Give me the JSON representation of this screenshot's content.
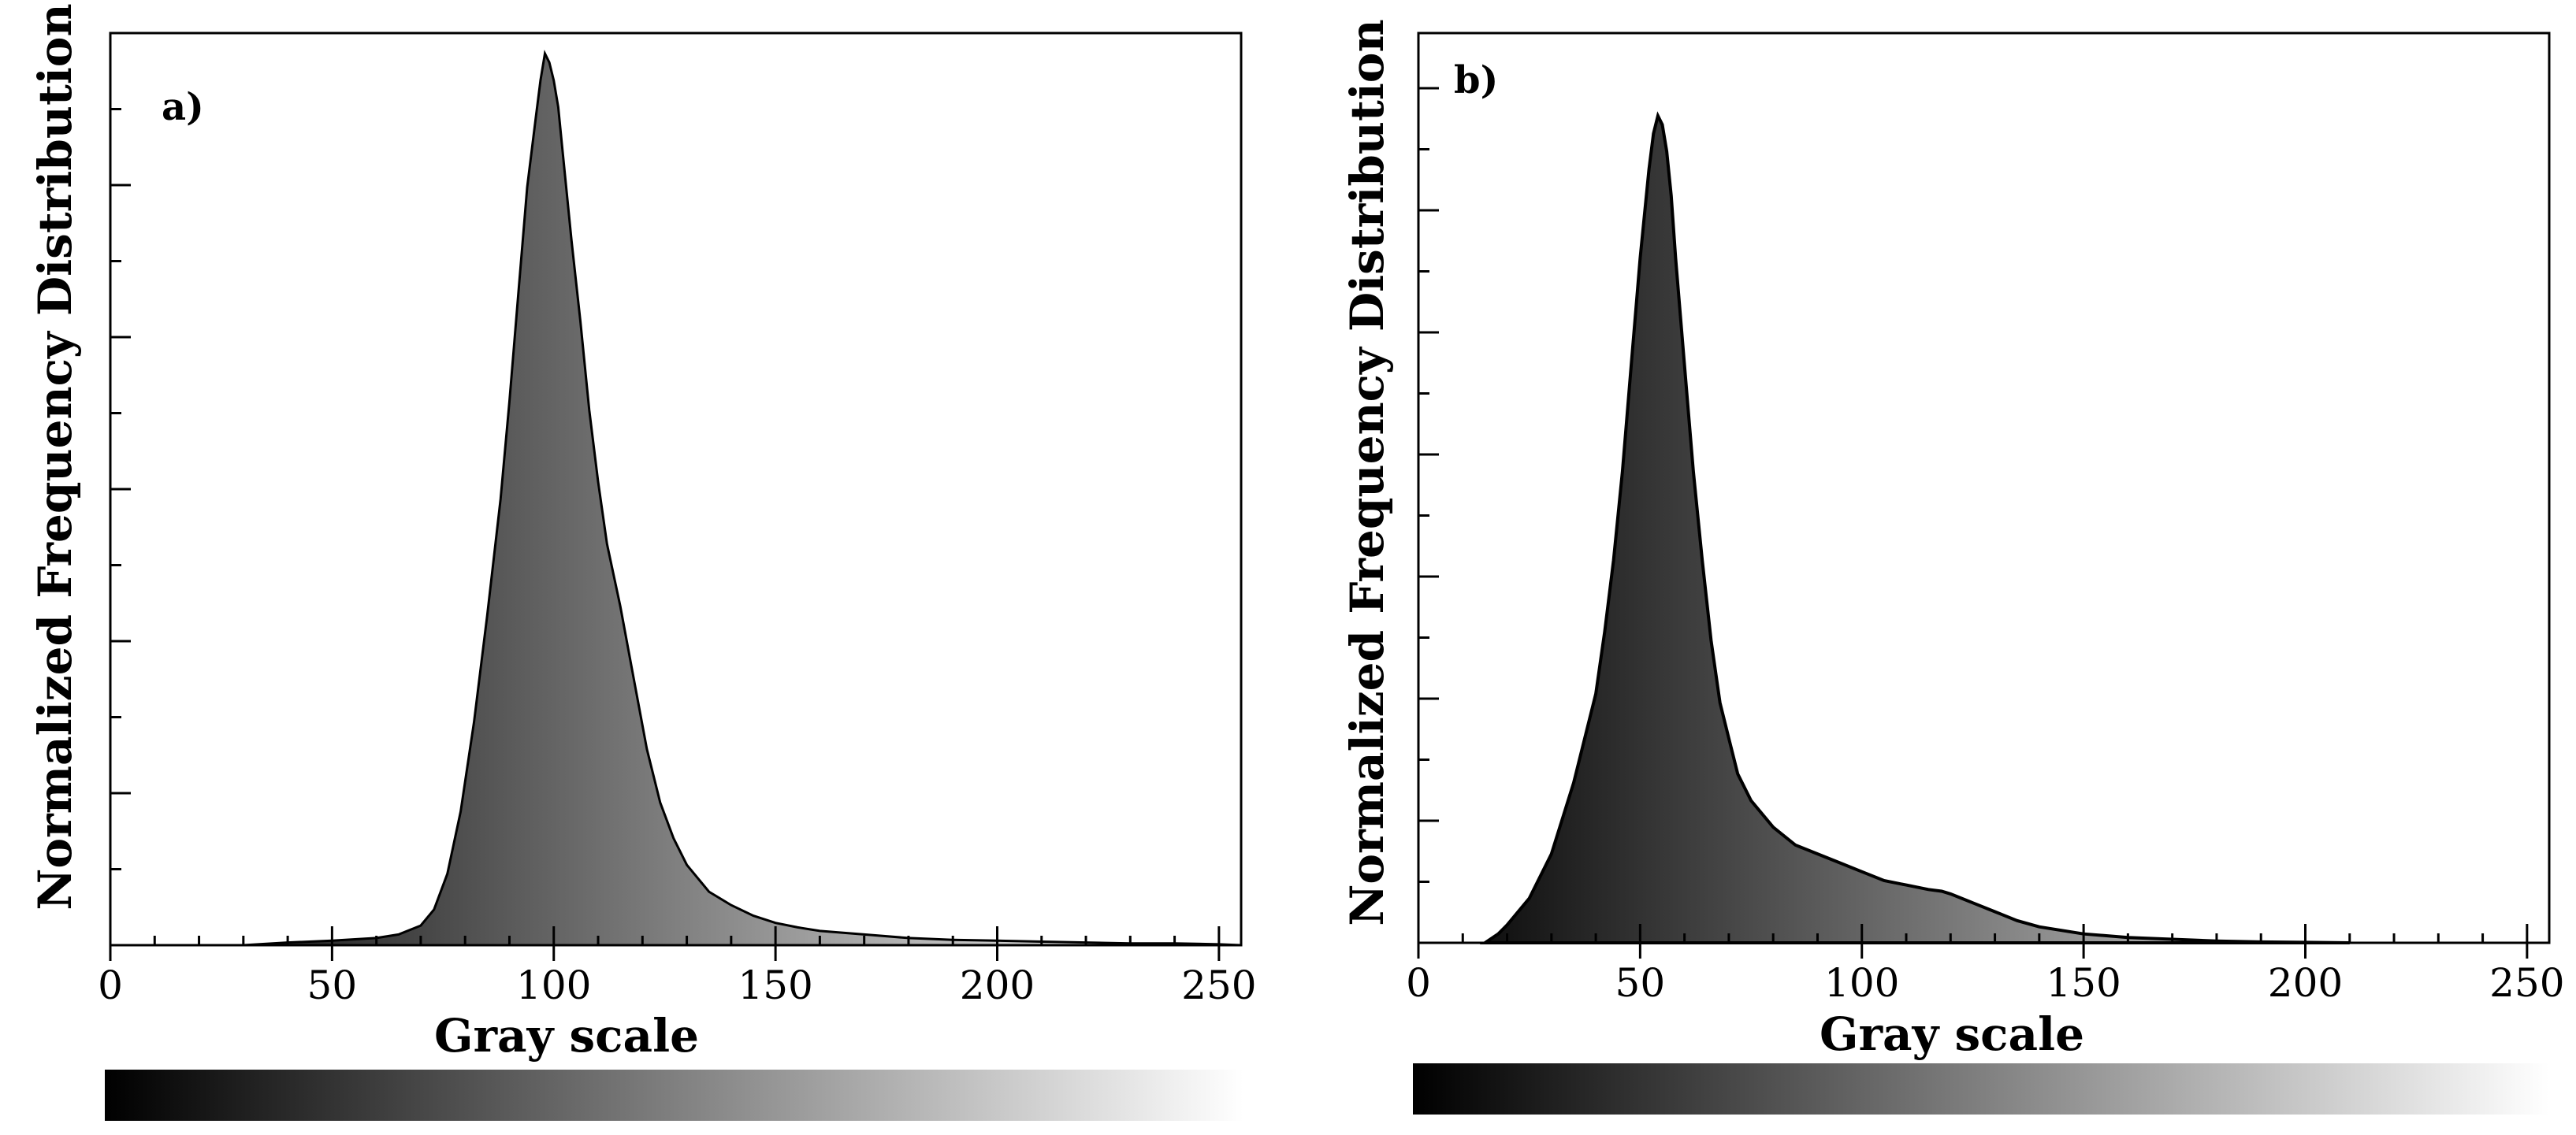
{
  "chart_data": [
    {
      "type": "area",
      "panel_label": "a)",
      "xlabel": "Gray scale",
      "ylabel": "Normalized Frequency Distribution",
      "xlim": [
        0,
        255
      ],
      "xticks": [
        0,
        50,
        100,
        150,
        200,
        250
      ],
      "ylim": [
        0,
        1.0
      ],
      "y_tick_labels_shown": false,
      "fill": "gray-level gradient",
      "series": [
        {
          "x": [
            30,
            40,
            50,
            60,
            65,
            70,
            73,
            76,
            79,
            82,
            85,
            88,
            90,
            92,
            94,
            96,
            97,
            98,
            99,
            100,
            101,
            102,
            104,
            106,
            108,
            110,
            112,
            115,
            118,
            121,
            124,
            127,
            130,
            135,
            140,
            145,
            150,
            155,
            160,
            170,
            180,
            190,
            200,
            210,
            220,
            230,
            240,
            250,
            255
          ],
          "y": [
            0,
            0.003,
            0.005,
            0.008,
            0.012,
            0.022,
            0.04,
            0.08,
            0.15,
            0.25,
            0.37,
            0.5,
            0.61,
            0.73,
            0.85,
            0.93,
            0.97,
            1.0,
            0.99,
            0.97,
            0.94,
            0.89,
            0.79,
            0.7,
            0.6,
            0.52,
            0.45,
            0.38,
            0.3,
            0.22,
            0.16,
            0.12,
            0.09,
            0.06,
            0.045,
            0.033,
            0.025,
            0.02,
            0.016,
            0.012,
            0.008,
            0.006,
            0.005,
            0.004,
            0.003,
            0.002,
            0.002,
            0.001,
            0
          ]
        }
      ]
    },
    {
      "type": "area",
      "panel_label": "b)",
      "xlabel": "Gray scale",
      "ylabel": "Normalized Frequency Distribution",
      "xlim": [
        0,
        255
      ],
      "xticks": [
        0,
        50,
        100,
        150,
        200,
        250
      ],
      "ylim": [
        0,
        1.0
      ],
      "y_tick_labels_shown": false,
      "fill": "gray-level gradient",
      "series": [
        {
          "x": [
            15,
            18,
            20,
            25,
            30,
            35,
            40,
            42,
            44,
            46,
            48,
            50,
            52,
            53,
            54,
            55,
            56,
            57,
            58,
            60,
            62,
            64,
            66,
            68,
            70,
            72,
            75,
            80,
            85,
            90,
            95,
            100,
            105,
            110,
            115,
            118,
            120,
            125,
            130,
            135,
            140,
            150,
            160,
            170,
            180,
            190,
            200,
            210
          ],
          "y": [
            0,
            0.01,
            0.02,
            0.05,
            0.1,
            0.18,
            0.28,
            0.35,
            0.43,
            0.53,
            0.65,
            0.77,
            0.87,
            0.91,
            0.93,
            0.92,
            0.89,
            0.84,
            0.77,
            0.65,
            0.53,
            0.43,
            0.34,
            0.27,
            0.23,
            0.19,
            0.16,
            0.13,
            0.11,
            0.1,
            0.09,
            0.08,
            0.07,
            0.065,
            0.06,
            0.058,
            0.055,
            0.045,
            0.035,
            0.025,
            0.018,
            0.01,
            0.006,
            0.004,
            0.002,
            0.001,
            0.0005,
            0
          ]
        }
      ]
    }
  ]
}
